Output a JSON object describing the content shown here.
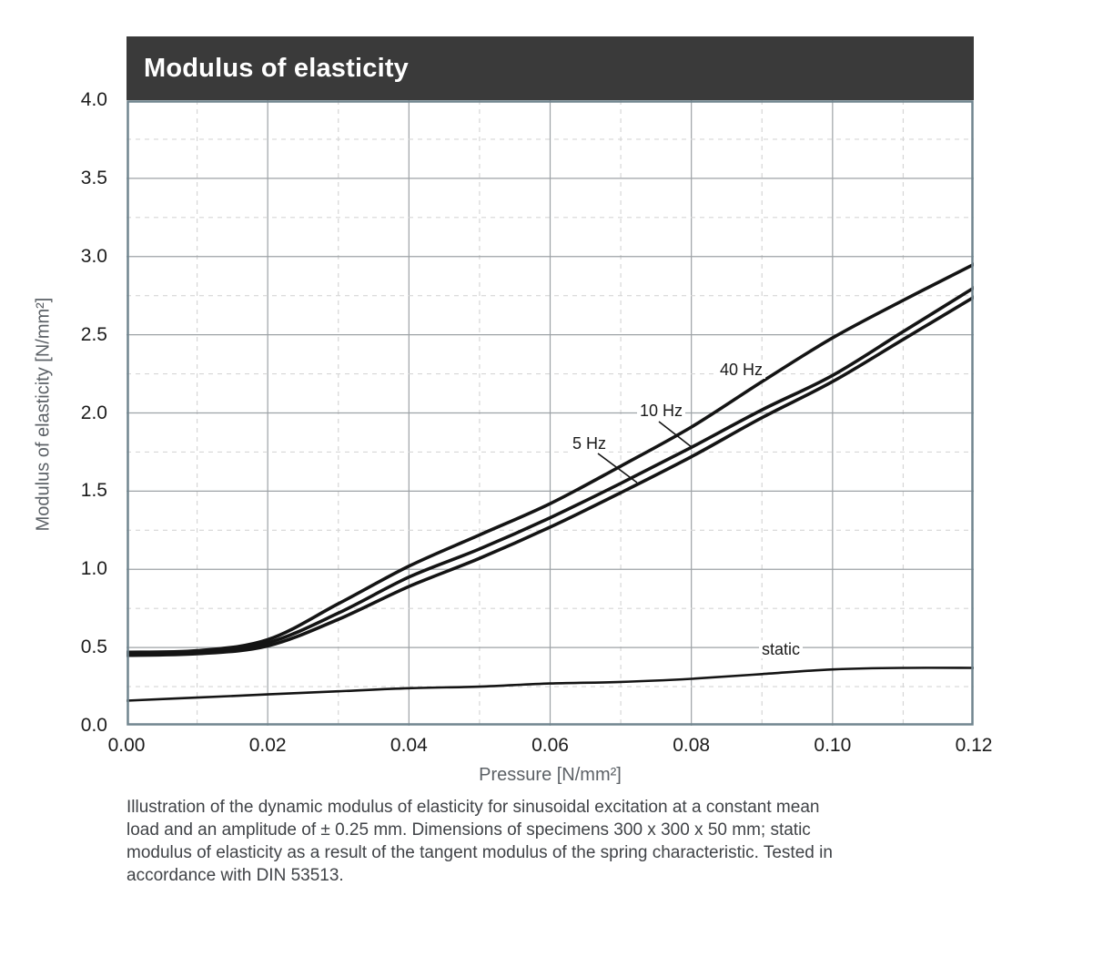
{
  "chart_data": {
    "type": "line",
    "title": "Modulus of elasticity",
    "xlabel": "Pressure [N/mm²]",
    "ylabel": "Modulus of elasticity [N/mm²]",
    "xlim": [
      0,
      0.12
    ],
    "ylim": [
      0,
      4.0
    ],
    "x_major_step": 0.02,
    "x_minor_step": 0.01,
    "y_major_step": 0.5,
    "y_minor_step": 0.25,
    "grid": {
      "major": "solid",
      "minor": "dashed"
    },
    "legend_position": "inline-labels-on-curves",
    "x_tick_labels": [
      "0.00",
      "0.02",
      "0.04",
      "0.06",
      "0.08",
      "0.10",
      "0.12"
    ],
    "y_tick_labels": [
      "0.0",
      "0.5",
      "1.0",
      "1.5",
      "2.0",
      "2.5",
      "3.0",
      "3.5",
      "4.0"
    ],
    "x": [
      0,
      0.01,
      0.02,
      0.03,
      0.04,
      0.05,
      0.06,
      0.07,
      0.08,
      0.09,
      0.1,
      0.11,
      0.12
    ],
    "series": [
      {
        "name": "40 Hz",
        "values": [
          0.47,
          0.48,
          0.55,
          0.78,
          1.02,
          1.22,
          1.42,
          1.66,
          1.91,
          2.2,
          2.48,
          2.72,
          2.95
        ]
      },
      {
        "name": "10 Hz",
        "values": [
          0.46,
          0.47,
          0.53,
          0.72,
          0.95,
          1.13,
          1.33,
          1.55,
          1.78,
          2.02,
          2.24,
          2.52,
          2.8
        ]
      },
      {
        "name": "5 Hz",
        "values": [
          0.45,
          0.46,
          0.51,
          0.68,
          0.89,
          1.07,
          1.27,
          1.49,
          1.72,
          1.97,
          2.2,
          2.47,
          2.74
        ]
      },
      {
        "name": "static",
        "values": [
          0.16,
          0.18,
          0.2,
          0.22,
          0.24,
          0.25,
          0.27,
          0.28,
          0.3,
          0.33,
          0.36,
          0.37,
          0.37
        ]
      }
    ],
    "colors": {
      "curve": "#141414",
      "frame": "#71858f",
      "grid_major": "#9da2a6",
      "grid_minor": "#d6d6d6",
      "title_bar_bg": "#3a3a3a",
      "title_text": "#ffffff"
    }
  },
  "caption": {
    "lines": [
      "Illustration of the dynamic modulus of elasticity for sinusoidal excitation at a constant mean",
      "load and an amplitude of ± 0.25 mm. Dimensions of specimens 300 x 300 x 50 mm; static",
      "modulus of elasticity as a result of the tangent modulus of the spring characteristic. Tested in",
      "accordance with DIN 53513."
    ]
  }
}
